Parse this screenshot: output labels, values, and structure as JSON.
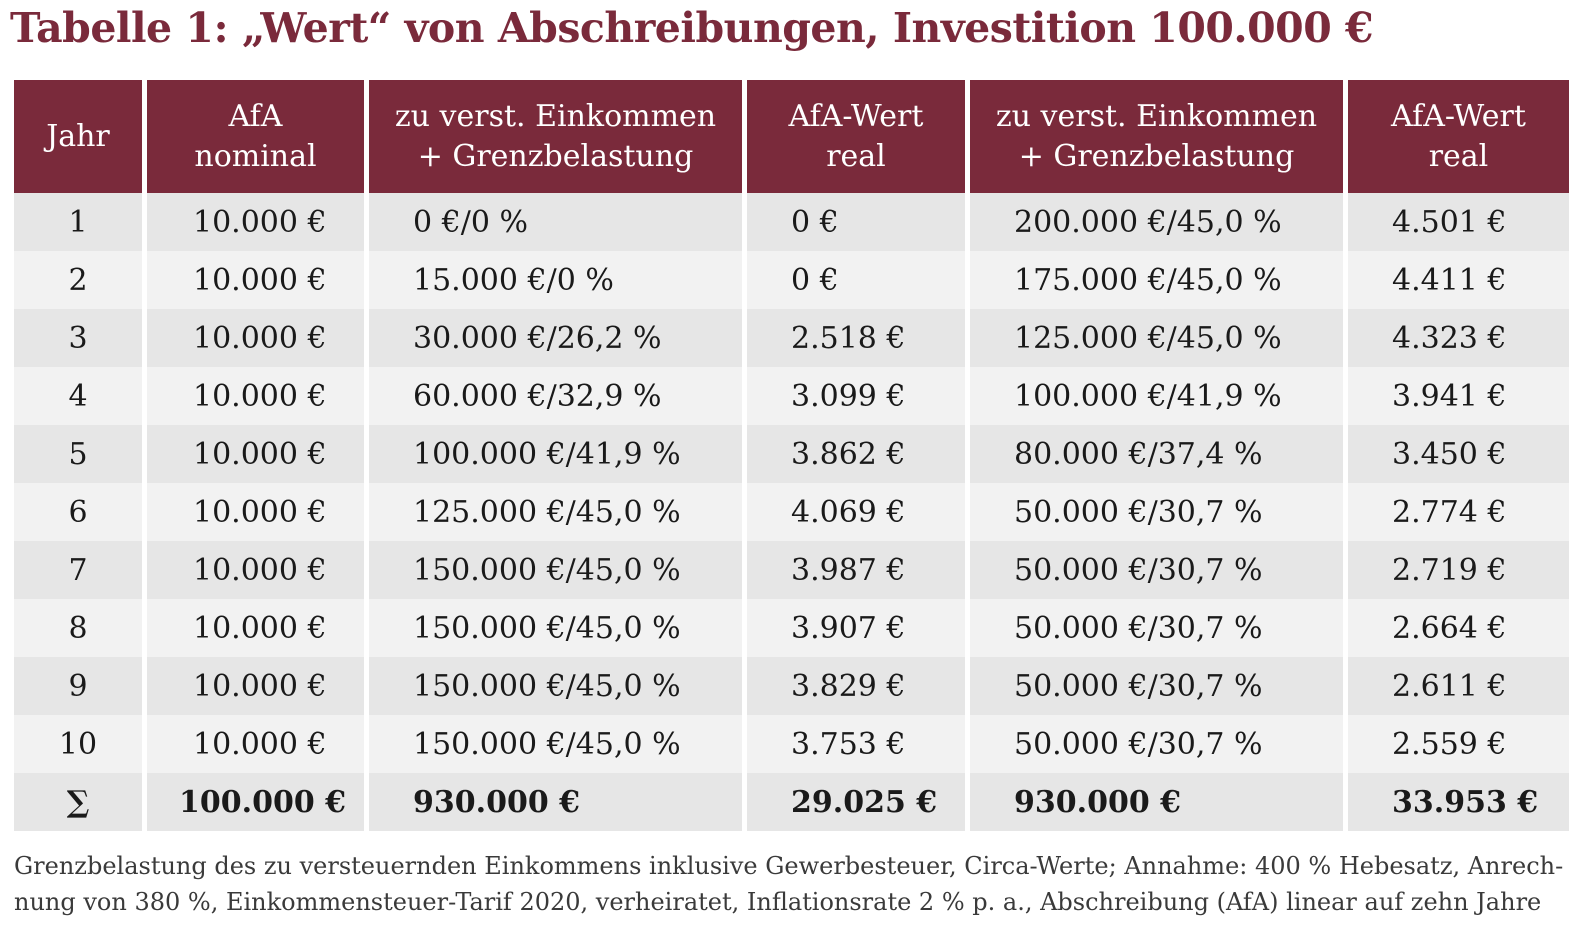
{
  "title": "Tabelle 1: „Wert“ von Abschreibungen, Investition 100.000 €",
  "colors": {
    "header_bg": "#7a2a3b",
    "title_color": "#7a2a3b",
    "row_dark": "#e6e6e6",
    "row_light": "#f2f2f2"
  },
  "table": {
    "headers": [
      {
        "line1": "Jahr",
        "line2": ""
      },
      {
        "line1": "AfA",
        "line2": "nominal"
      },
      {
        "line1": "zu verst. Einkommen",
        "line2": "+ Grenzbelastung"
      },
      {
        "line1": "AfA-Wert",
        "line2": "real"
      },
      {
        "line1": "zu verst. Einkommen",
        "line2": "+ Grenzbelastung"
      },
      {
        "line1": "AfA-Wert",
        "line2": "real"
      }
    ],
    "rows": [
      [
        "1",
        "10.000 €",
        "0 €/0 %",
        "0 €",
        "200.000 €/45,0 %",
        "4.501 €"
      ],
      [
        "2",
        "10.000 €",
        "15.000 €/0 %",
        "0 €",
        "175.000 €/45,0 %",
        "4.411 €"
      ],
      [
        "3",
        "10.000 €",
        "30.000 €/26,2 %",
        "2.518 €",
        "125.000 €/45,0 %",
        "4.323 €"
      ],
      [
        "4",
        "10.000 €",
        "60.000 €/32,9 %",
        "3.099 €",
        "100.000 €/41,9 %",
        "3.941 €"
      ],
      [
        "5",
        "10.000 €",
        "100.000 €/41,9 %",
        "3.862 €",
        "80.000 €/37,4 %",
        "3.450 €"
      ],
      [
        "6",
        "10.000 €",
        "125.000 €/45,0 %",
        "4.069 €",
        "50.000 €/30,7 %",
        "2.774 €"
      ],
      [
        "7",
        "10.000 €",
        "150.000 €/45,0 %",
        "3.987 €",
        "50.000 €/30,7 %",
        "2.719 €"
      ],
      [
        "8",
        "10.000 €",
        "150.000 €/45,0 %",
        "3.907 €",
        "50.000 €/30,7 %",
        "2.664 €"
      ],
      [
        "9",
        "10.000 €",
        "150.000 €/45,0 %",
        "3.829 €",
        "50.000 €/30,7 %",
        "2.611 €"
      ],
      [
        "10",
        "10.000 €",
        "150.000 €/45,0 %",
        "3.753 €",
        "50.000 €/30,7 %",
        "2.559 €"
      ]
    ],
    "sum_row": [
      "∑",
      "100.000 €",
      "930.000 €",
      "29.025 €",
      "930.000 €",
      "33.953 €"
    ]
  },
  "footnote": {
    "line1": "Grenzbelastung des zu versteuernden Einkommens inklusive Gewerbesteuer, Circa-Werte; Annahme: 400 % Hebesatz, Anrech-",
    "line2": "nung von 380 %, Einkommensteuer-Tarif 2020, verheiratet, Inflationsrate 2 % p. a., Abschreibung (AfA) linear auf zehn Jahre"
  }
}
